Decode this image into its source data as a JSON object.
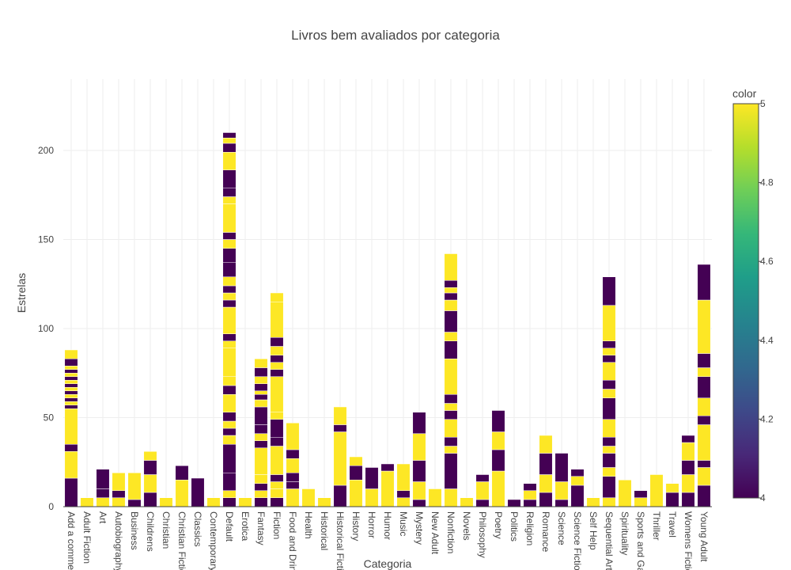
{
  "chart_data": {
    "type": "bar",
    "title": "Livros bem avaliados por categoria",
    "xlabel": "Categoria",
    "ylabel": "Estrelas",
    "ylim": [
      0,
      240
    ],
    "yticks": [
      0,
      50,
      100,
      150,
      200
    ],
    "grid": true,
    "barmode": "stack",
    "colorbar": {
      "title": "color",
      "range": [
        4,
        5
      ],
      "ticks": [
        "4",
        "4.2",
        "4.4",
        "4.6",
        "4.8",
        "5"
      ],
      "colorscale": "viridis"
    },
    "categories": [
      "Add a comment",
      "Adult Fiction",
      "Art",
      "Autobiography",
      "Business",
      "Childrens",
      "Christian",
      "Christian Fiction",
      "Classics",
      "Contemporary",
      "Default",
      "Erotica",
      "Fantasy",
      "Fiction",
      "Food and Drink",
      "Health",
      "Historical",
      "Historical Fiction",
      "History",
      "Horror",
      "Humor",
      "Music",
      "Mystery",
      "New Adult",
      "Nonfiction",
      "Novels",
      "Philosophy",
      "Poetry",
      "Politics",
      "Religion",
      "Romance",
      "Science",
      "Science Fiction",
      "Self Help",
      "Sequential Art",
      "Spirituality",
      "Sports and Games",
      "Thriller",
      "Travel",
      "Womens Fiction",
      "Young Adult"
    ],
    "stacks": [
      [
        [
          16,
          4
        ],
        [
          15,
          5
        ],
        [
          4,
          4
        ],
        [
          20,
          5
        ],
        [
          2,
          4
        ],
        [
          2,
          5
        ],
        [
          2,
          4
        ],
        [
          2,
          5
        ],
        [
          2,
          4
        ],
        [
          2,
          5
        ],
        [
          2,
          4
        ],
        [
          2,
          5
        ],
        [
          2,
          4
        ],
        [
          2,
          5
        ],
        [
          2,
          4
        ],
        [
          2,
          5
        ],
        [
          4,
          4
        ],
        [
          5,
          5
        ]
      ],
      [
        [
          5,
          5
        ]
      ],
      [
        [
          5,
          5
        ],
        [
          5,
          4
        ],
        [
          11,
          4
        ]
      ],
      [
        [
          5,
          5
        ],
        [
          4,
          4
        ],
        [
          10,
          5
        ]
      ],
      [
        [
          4,
          4
        ],
        [
          15,
          5
        ]
      ],
      [
        [
          8,
          4
        ],
        [
          10,
          5
        ],
        [
          8,
          4
        ],
        [
          5,
          5
        ]
      ],
      [
        [
          5,
          5
        ]
      ],
      [
        [
          15,
          5
        ],
        [
          8,
          4
        ]
      ],
      [
        [
          16,
          4
        ]
      ],
      [
        [
          5,
          5
        ]
      ],
      [
        [
          5,
          4
        ],
        [
          4,
          5
        ],
        [
          10,
          4
        ],
        [
          16,
          4
        ],
        [
          5,
          5
        ],
        [
          4,
          4
        ],
        [
          4,
          5
        ],
        [
          5,
          4
        ],
        [
          10,
          5
        ],
        [
          5,
          4
        ],
        [
          5,
          5
        ],
        [
          16,
          5
        ],
        [
          4,
          5
        ],
        [
          4,
          4
        ],
        [
          15,
          5
        ],
        [
          4,
          4
        ],
        [
          4,
          5
        ],
        [
          4,
          4
        ],
        [
          5,
          5
        ],
        [
          8,
          4
        ],
        [
          8,
          4
        ],
        [
          5,
          5
        ],
        [
          4,
          4
        ],
        [
          16,
          5
        ],
        [
          4,
          5
        ],
        [
          5,
          4
        ],
        [
          10,
          4
        ],
        [
          10,
          5
        ],
        [
          5,
          4
        ],
        [
          3,
          5
        ],
        [
          3,
          4
        ]
      ],
      [
        [
          5,
          5
        ]
      ],
      [
        [
          5,
          4
        ],
        [
          4,
          5
        ],
        [
          4,
          4
        ],
        [
          5,
          5
        ],
        [
          15,
          5
        ],
        [
          4,
          4
        ],
        [
          4,
          5
        ],
        [
          5,
          4
        ],
        [
          10,
          4
        ],
        [
          4,
          5
        ],
        [
          3,
          4
        ],
        [
          2,
          5
        ],
        [
          4,
          4
        ],
        [
          4,
          5
        ],
        [
          5,
          4
        ],
        [
          5,
          5
        ]
      ],
      [
        [
          5,
          4
        ],
        [
          5,
          5
        ],
        [
          4,
          5
        ],
        [
          4,
          4
        ],
        [
          16,
          5
        ],
        [
          5,
          4
        ],
        [
          10,
          4
        ],
        [
          4,
          5
        ],
        [
          20,
          5
        ],
        [
          4,
          4
        ],
        [
          4,
          5
        ],
        [
          4,
          4
        ],
        [
          5,
          5
        ],
        [
          5,
          4
        ],
        [
          20,
          5
        ],
        [
          5,
          5
        ]
      ],
      [
        [
          10,
          5
        ],
        [
          4,
          4
        ],
        [
          5,
          4
        ],
        [
          8,
          5
        ],
        [
          5,
          4
        ],
        [
          15,
          5
        ]
      ],
      [
        [
          10,
          5
        ]
      ],
      [
        [
          5,
          5
        ]
      ],
      [
        [
          12,
          4
        ],
        [
          30,
          5
        ],
        [
          4,
          4
        ],
        [
          10,
          5
        ]
      ],
      [
        [
          15,
          5
        ],
        [
          8,
          4
        ],
        [
          5,
          5
        ]
      ],
      [
        [
          10,
          5
        ],
        [
          12,
          4
        ]
      ],
      [
        [
          20,
          5
        ],
        [
          4,
          4
        ]
      ],
      [
        [
          5,
          5
        ],
        [
          4,
          4
        ],
        [
          15,
          5
        ]
      ],
      [
        [
          4,
          4
        ],
        [
          10,
          5
        ],
        [
          12,
          4
        ],
        [
          15,
          5
        ],
        [
          12,
          4
        ]
      ],
      [
        [
          10,
          5
        ]
      ],
      [
        [
          10,
          5
        ],
        [
          20,
          4
        ],
        [
          4,
          5
        ],
        [
          5,
          4
        ],
        [
          10,
          5
        ],
        [
          5,
          4
        ],
        [
          4,
          5
        ],
        [
          5,
          4
        ],
        [
          20,
          5
        ],
        [
          10,
          4
        ],
        [
          5,
          5
        ],
        [
          12,
          4
        ],
        [
          6,
          5
        ],
        [
          4,
          4
        ],
        [
          3,
          5
        ],
        [
          4,
          4
        ],
        [
          15,
          5
        ]
      ],
      [
        [
          5,
          5
        ]
      ],
      [
        [
          4,
          4
        ],
        [
          10,
          5
        ],
        [
          4,
          4
        ]
      ],
      [
        [
          20,
          5
        ],
        [
          12,
          4
        ],
        [
          10,
          5
        ],
        [
          12,
          4
        ]
      ],
      [
        [
          4,
          4
        ]
      ],
      [
        [
          4,
          4
        ],
        [
          5,
          5
        ],
        [
          4,
          4
        ]
      ],
      [
        [
          8,
          4
        ],
        [
          10,
          5
        ],
        [
          12,
          4
        ],
        [
          10,
          5
        ]
      ],
      [
        [
          4,
          4
        ],
        [
          10,
          5
        ],
        [
          16,
          4
        ]
      ],
      [
        [
          12,
          4
        ],
        [
          5,
          5
        ],
        [
          4,
          4
        ]
      ],
      [
        [
          5,
          5
        ]
      ],
      [
        [
          5,
          5
        ],
        [
          12,
          4
        ],
        [
          5,
          5
        ],
        [
          8,
          4
        ],
        [
          4,
          5
        ],
        [
          5,
          4
        ],
        [
          10,
          5
        ],
        [
          12,
          4
        ],
        [
          5,
          5
        ],
        [
          5,
          4
        ],
        [
          10,
          5
        ],
        [
          4,
          4
        ],
        [
          4,
          5
        ],
        [
          4,
          4
        ],
        [
          20,
          5
        ],
        [
          16,
          4
        ]
      ],
      [
        [
          15,
          5
        ]
      ],
      [
        [
          5,
          5
        ],
        [
          4,
          4
        ]
      ],
      [
        [
          18,
          5
        ]
      ],
      [
        [
          8,
          4
        ],
        [
          5,
          5
        ]
      ],
      [
        [
          8,
          4
        ],
        [
          10,
          5
        ],
        [
          8,
          4
        ],
        [
          10,
          5
        ],
        [
          4,
          4
        ]
      ],
      [
        [
          12,
          4
        ],
        [
          10,
          5
        ],
        [
          4,
          4
        ],
        [
          20,
          5
        ],
        [
          5,
          4
        ],
        [
          10,
          5
        ],
        [
          12,
          4
        ],
        [
          5,
          5
        ],
        [
          8,
          4
        ],
        [
          30,
          5
        ],
        [
          20,
          4
        ]
      ]
    ]
  }
}
